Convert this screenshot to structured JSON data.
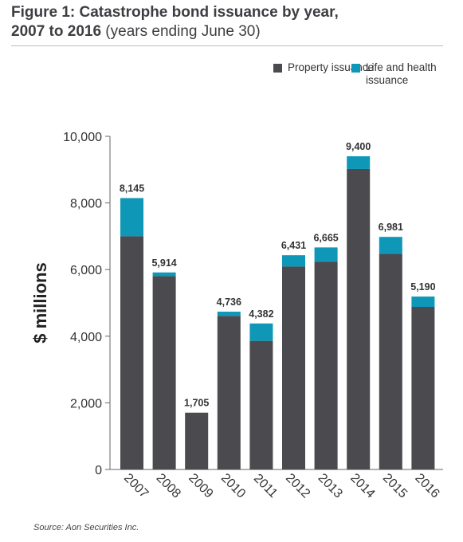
{
  "figure": {
    "title_main": "Figure 1: Catastrophe bond issuance by year,",
    "title_line2_bold": "2007 to 2016",
    "title_line2_rest": " (years ending June 30)",
    "source": "Source: Aon Securities Inc."
  },
  "colors": {
    "property": "#4a4a4f",
    "life_health": "#0f97b8",
    "axis": "#666666"
  },
  "chart_data": {
    "type": "bar",
    "stacked": true,
    "categories": [
      "2007",
      "2008",
      "2009",
      "2010",
      "2011",
      "2012",
      "2013",
      "2014",
      "2015",
      "2016"
    ],
    "series": [
      {
        "name": "Property issuance",
        "values": [
          7000,
          5800,
          1705,
          4610,
          3860,
          6090,
          6240,
          9020,
          6470,
          4880
        ]
      },
      {
        "name": "Life and health issuance",
        "values": [
          1145,
          114,
          0,
          126,
          522,
          341,
          425,
          380,
          511,
          310
        ]
      }
    ],
    "totals": [
      "8,145",
      "5,914",
      "1,705",
      "4,736",
      "4,382",
      "6,431",
      "6,665",
      "9,400",
      "6,981",
      "5,190"
    ],
    "ylabel": "$ millions",
    "xlabel": "",
    "ylim": [
      0,
      10000
    ],
    "yticks": [
      0,
      2000,
      4000,
      6000,
      8000,
      10000
    ],
    "ytick_labels": [
      "0",
      "2,000",
      "4,000",
      "6,000",
      "8,000",
      "10,000"
    ],
    "grid": false,
    "legend_position": "top-right"
  }
}
